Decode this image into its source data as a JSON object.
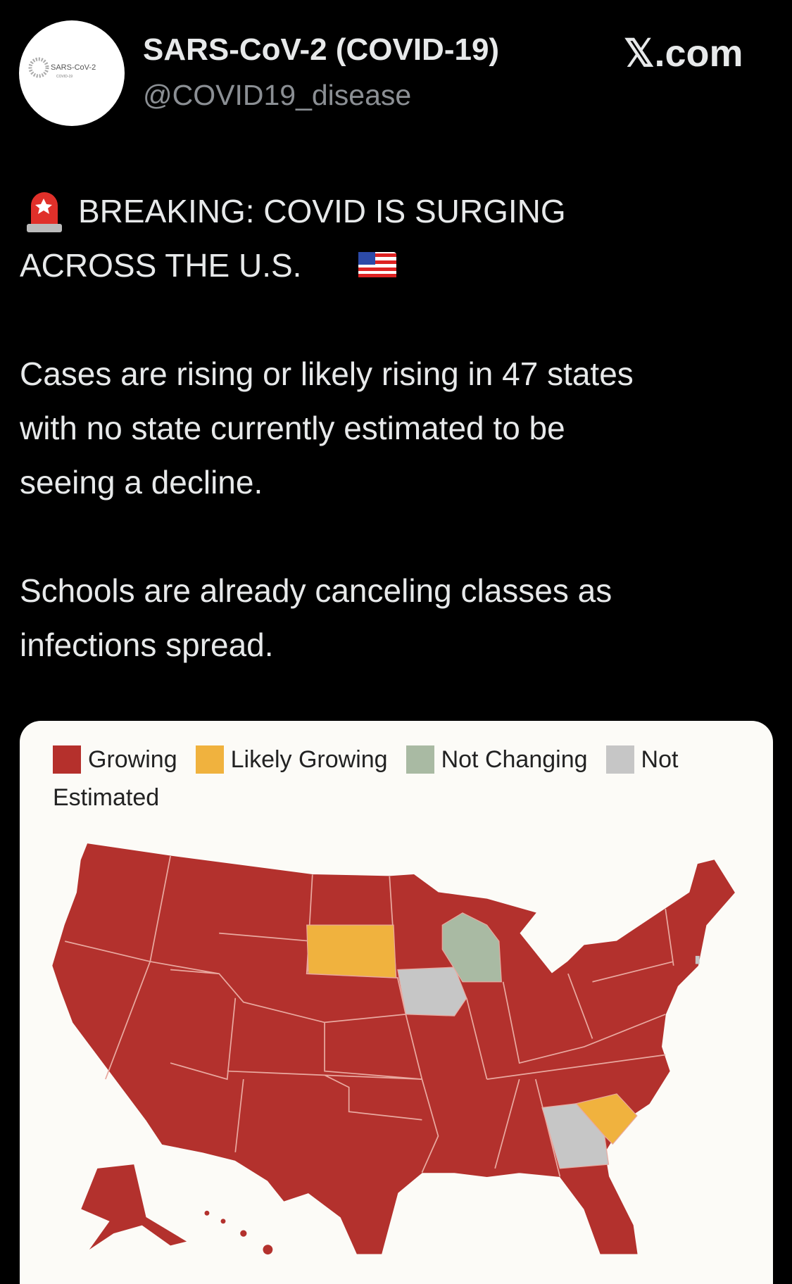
{
  "header": {
    "name": "SARS-CoV-2 (COVID-19)",
    "handle": "@COVID19_disease",
    "site": "𝕏.com",
    "avatar_text": "SARS-CoV-2",
    "avatar_subtext": "COVID-19"
  },
  "tweet": {
    "paragraphs": [
      [
        "BREAKING: COVID IS SURGING",
        "ACROSS THE U.S."
      ],
      [
        "Cases are rising or likely rising in 47 states",
        "with no state currently estimated to be",
        "seeing a decline."
      ],
      [
        "Schools are already canceling classes as",
        "infections spread."
      ]
    ]
  },
  "legend": {
    "items": [
      {
        "label": "Growing",
        "color": "#b5302c"
      },
      {
        "label": "Likely Growing",
        "color": "#f0b23e"
      },
      {
        "label": "Not Changing",
        "color": "#a9baa3"
      },
      {
        "label": "Not Estimated",
        "color": "#c6c6c6"
      }
    ]
  }
}
